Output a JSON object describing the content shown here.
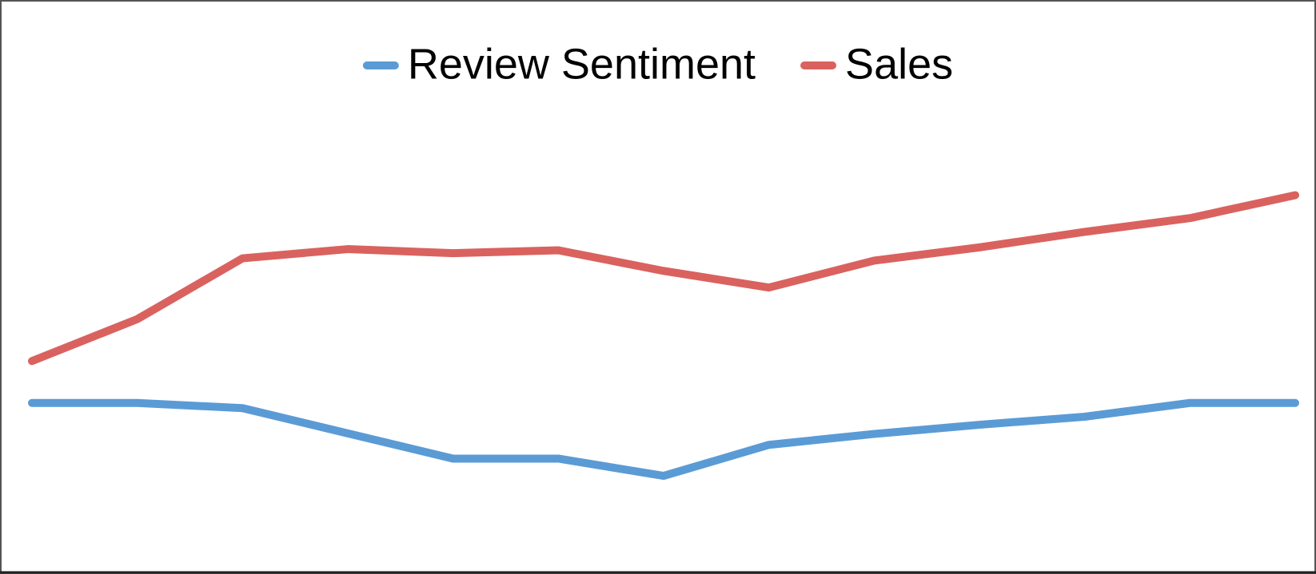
{
  "chart_data": {
    "type": "line",
    "categories": [
      null,
      null,
      null,
      null,
      null,
      null,
      null,
      null,
      null,
      null,
      null,
      null,
      null
    ],
    "series": [
      {
        "name": "Review Sentiment",
        "color": "#5b9bd5",
        "values": [
          29.8,
          29.8,
          28.9,
          24.5,
          20.1,
          20.1,
          17.1,
          22.5,
          24.4,
          26.0,
          27.4,
          29.8,
          29.8
        ]
      },
      {
        "name": "Sales",
        "color": "#d9625f",
        "values": [
          37.1,
          44.4,
          55.0,
          56.6,
          55.9,
          56.4,
          52.8,
          49.9,
          54.6,
          56.9,
          59.6,
          62.0,
          66.0
        ]
      }
    ],
    "ylim": [
      0,
      100
    ],
    "legend": "top",
    "grid": false
  }
}
